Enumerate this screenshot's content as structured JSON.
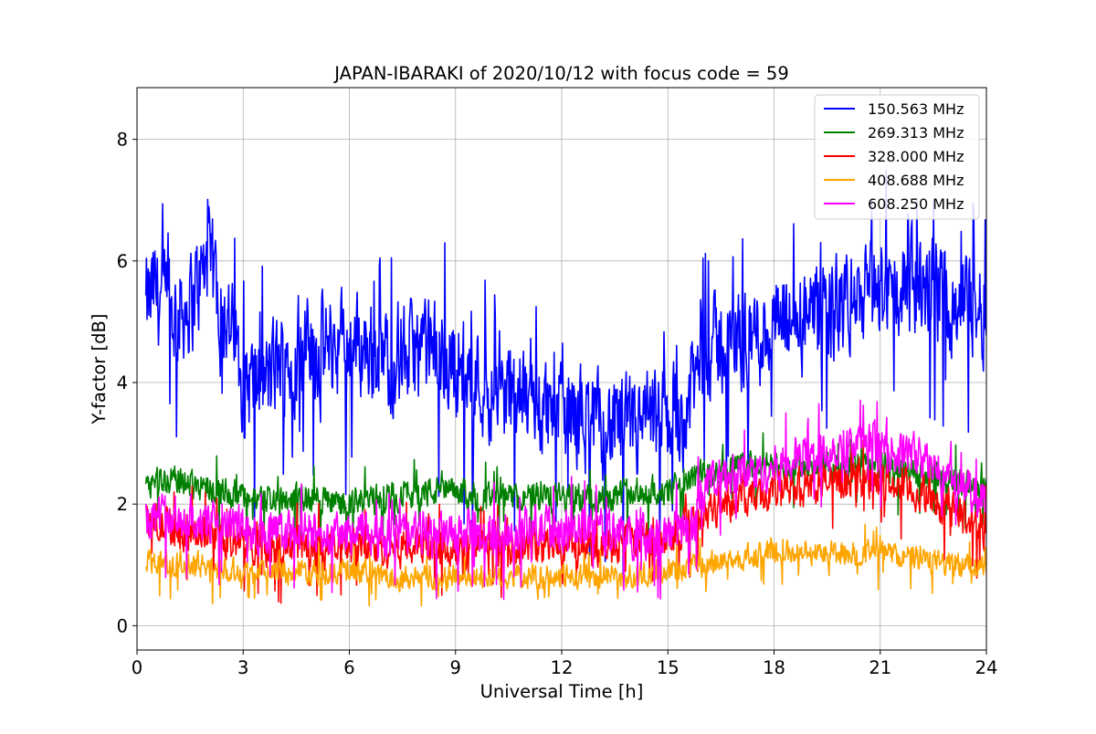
{
  "chart_data": {
    "type": "line",
    "title": "JAPAN-IBARAKI of 2020/10/12 with focus code = 59",
    "xlabel": "Universal Time [h]",
    "ylabel": "Y-factor [dB]",
    "xlim": [
      0,
      24
    ],
    "ylim": [
      -0.4,
      8.85
    ],
    "xticks": [
      0,
      3,
      6,
      9,
      12,
      15,
      18,
      21,
      24
    ],
    "yticks": [
      0,
      2,
      4,
      6,
      8
    ],
    "grid": true,
    "legend_position": "top-right",
    "series": [
      {
        "name": "150.563 MHz",
        "color": "#0000ff",
        "x": [
          0.25,
          0.5,
          1,
          1.5,
          2,
          2.5,
          3,
          3.5,
          4,
          5,
          6,
          7,
          8,
          9,
          10,
          11,
          12,
          13,
          14,
          15,
          15.5,
          16,
          17,
          18,
          19,
          20,
          21,
          22,
          23,
          24
        ],
        "y": [
          5.2,
          5.5,
          5.1,
          5.3,
          6.0,
          5.2,
          4.1,
          3.9,
          4.3,
          4.5,
          4.7,
          4.4,
          4.5,
          4.3,
          3.9,
          3.7,
          3.5,
          3.3,
          3.2,
          3.4,
          3.5,
          4.5,
          4.7,
          4.9,
          5.0,
          5.3,
          5.5,
          5.6,
          5.4,
          5.2
        ],
        "noise": 0.75
      },
      {
        "name": "269.313 MHz",
        "color": "#008000",
        "x": [
          0.25,
          1,
          2,
          3,
          4,
          5,
          6,
          7,
          8,
          9,
          10,
          11,
          12,
          13,
          14,
          15,
          16,
          17,
          18,
          19,
          20,
          21,
          22,
          23,
          24
        ],
        "y": [
          2.4,
          2.4,
          2.3,
          2.1,
          2.1,
          2.1,
          2.0,
          2.1,
          2.2,
          2.2,
          2.1,
          2.1,
          2.1,
          2.1,
          2.2,
          2.2,
          2.5,
          2.6,
          2.6,
          2.6,
          2.6,
          2.6,
          2.5,
          2.4,
          2.3
        ],
        "noise": 0.22
      },
      {
        "name": "328.000 MHz",
        "color": "#ff0000",
        "x": [
          0.25,
          1,
          2,
          3,
          4,
          5,
          6,
          7,
          8,
          9,
          10,
          11,
          12,
          13,
          14,
          15,
          16,
          17,
          18,
          19,
          20,
          21,
          22,
          23,
          24
        ],
        "y": [
          1.7,
          1.6,
          1.5,
          1.4,
          1.3,
          1.3,
          1.3,
          1.3,
          1.3,
          1.3,
          1.3,
          1.3,
          1.3,
          1.3,
          1.4,
          1.5,
          1.9,
          2.1,
          2.2,
          2.3,
          2.4,
          2.4,
          2.2,
          1.9,
          1.6
        ],
        "noise": 0.28
      },
      {
        "name": "408.688 MHz",
        "color": "#ffa500",
        "x": [
          0.25,
          1,
          2,
          3,
          4,
          5,
          6,
          7,
          8,
          9,
          10,
          11,
          12,
          13,
          14,
          15,
          16,
          17,
          18,
          19,
          20,
          21,
          22,
          23,
          24
        ],
        "y": [
          1.1,
          1.0,
          1.0,
          0.9,
          0.9,
          0.9,
          0.9,
          0.8,
          0.8,
          0.8,
          0.8,
          0.8,
          0.8,
          0.8,
          0.8,
          0.9,
          1.0,
          1.1,
          1.2,
          1.2,
          1.2,
          1.2,
          1.1,
          1.0,
          1.0
        ],
        "noise": 0.18
      },
      {
        "name": "608.250 MHz",
        "color": "#ff00ff",
        "x": [
          0.25,
          1,
          2,
          3,
          4,
          5,
          6,
          7,
          8,
          9,
          10,
          11,
          12,
          13,
          14,
          15,
          15.7,
          16,
          17,
          18,
          19,
          20,
          21,
          22,
          23,
          24
        ],
        "y": [
          1.8,
          1.8,
          1.7,
          1.6,
          1.5,
          1.5,
          1.5,
          1.5,
          1.5,
          1.5,
          1.5,
          1.6,
          1.6,
          1.6,
          1.5,
          1.5,
          1.6,
          2.3,
          2.5,
          2.6,
          2.8,
          3.0,
          2.9,
          2.8,
          2.4,
          2.1
        ],
        "noise": 0.32
      }
    ]
  }
}
